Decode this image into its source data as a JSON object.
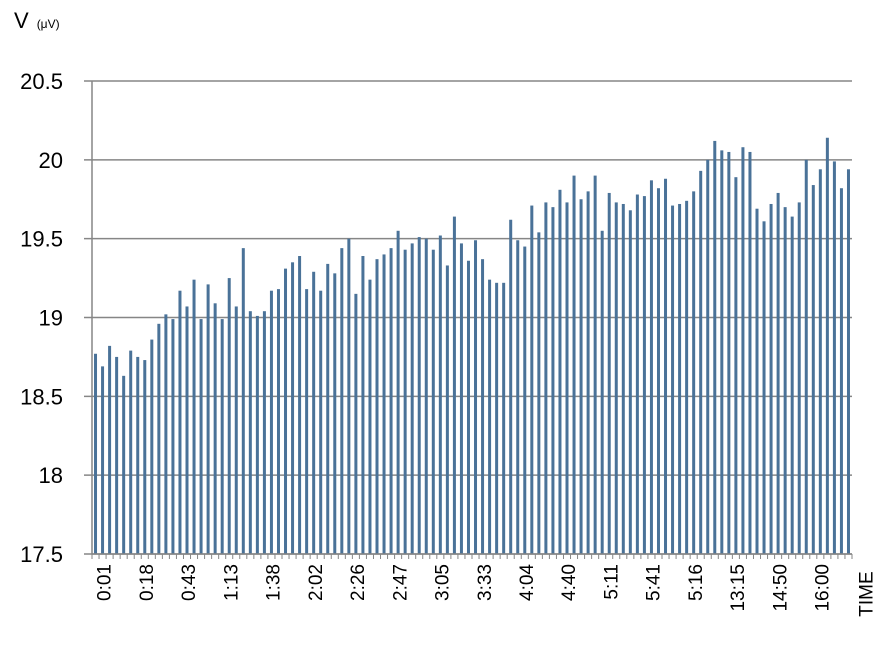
{
  "chart_data": {
    "type": "bar",
    "ylabel": "V",
    "ylabel_unit": "(μV)",
    "xlabel": "TIME",
    "ylim": [
      17.5,
      20.5
    ],
    "y_ticks": [
      "17.5",
      "18",
      "18.5",
      "19",
      "19.5",
      "20",
      "20.5"
    ],
    "grid": "horizontal",
    "bar_color": "#4a7298",
    "x_tick_labels": [
      "0:01",
      "0:18",
      "0:43",
      "1:13",
      "1:38",
      "2:02",
      "2:26",
      "2:47",
      "3:05",
      "3:33",
      "4:04",
      "4:40",
      "5:11",
      "5:41",
      "5:16",
      "13:15",
      "14:50",
      "16:00"
    ],
    "values": [
      18.77,
      18.69,
      18.82,
      18.75,
      18.63,
      18.79,
      18.75,
      18.73,
      18.86,
      18.96,
      19.02,
      18.99,
      19.17,
      19.07,
      19.24,
      18.99,
      19.21,
      19.09,
      18.99,
      19.25,
      19.07,
      19.44,
      19.04,
      19.01,
      19.04,
      19.17,
      19.18,
      19.31,
      19.35,
      19.39,
      19.18,
      19.29,
      19.17,
      19.34,
      19.28,
      19.44,
      19.5,
      19.15,
      19.39,
      19.24,
      19.37,
      19.4,
      19.44,
      19.55,
      19.43,
      19.47,
      19.51,
      19.5,
      19.43,
      19.52,
      19.33,
      19.64,
      19.47,
      19.36,
      19.49,
      19.37,
      19.24,
      19.22,
      19.22,
      19.62,
      19.49,
      19.45,
      19.71,
      19.54,
      19.73,
      19.7,
      19.81,
      19.73,
      19.9,
      19.75,
      19.8,
      19.9,
      19.55,
      19.79,
      19.73,
      19.72,
      19.68,
      19.78,
      19.77,
      19.87,
      19.82,
      19.88,
      19.71,
      19.72,
      19.74,
      19.8,
      19.93,
      20.0,
      20.12,
      20.06,
      20.05,
      19.89,
      20.08,
      20.05,
      19.69,
      19.61,
      19.72,
      19.79,
      19.7,
      19.64,
      19.73,
      20.0,
      19.84,
      19.94,
      20.14,
      19.99,
      19.82,
      19.94
    ]
  }
}
